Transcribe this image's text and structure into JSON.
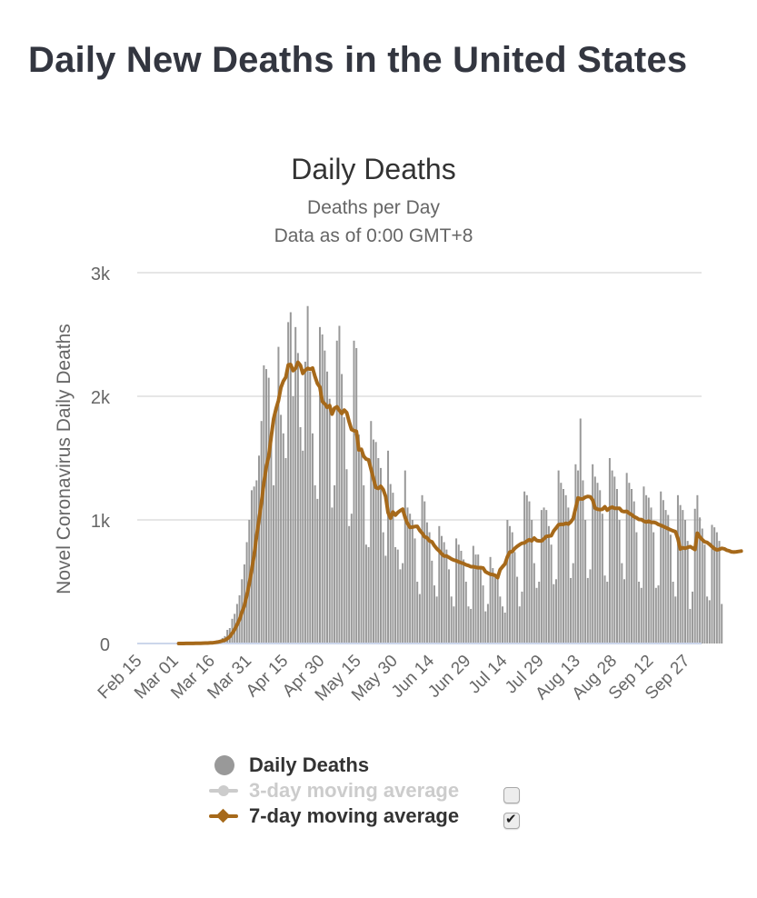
{
  "page": {
    "title": "Daily New Deaths in the United States"
  },
  "chart": {
    "title": "Daily Deaths",
    "subtitle_lines": [
      "Deaths per Day",
      "Data as of 0:00 GMT+8"
    ]
  },
  "legend": {
    "items": [
      {
        "label": "Daily Deaths",
        "color": "#999999",
        "enabled": true,
        "has_checkbox": false
      },
      {
        "label": "3-day moving average",
        "color": "#cccccc",
        "enabled": false,
        "has_checkbox": true,
        "checked": false
      },
      {
        "label": "7-day moving average",
        "color": "#a6691a",
        "enabled": true,
        "has_checkbox": true,
        "checked": true
      }
    ]
  },
  "chart_data": {
    "type": "bar",
    "title": "Daily Deaths",
    "subtitle": "Deaths per Day / Data as of 0:00 GMT+8",
    "xlabel": "",
    "ylabel": "Novel Coronavirus Daily Deaths",
    "ylim": [
      0,
      3000
    ],
    "yticks": [
      0,
      1000,
      2000,
      3000
    ],
    "ytick_labels": [
      "0",
      "1k",
      "2k",
      "3k"
    ],
    "grid": true,
    "legend_position": "bottom",
    "x_start_date": "Feb 15",
    "xtick_labels": [
      "Feb 15",
      "Mar 01",
      "Mar 16",
      "Mar 31",
      "Apr 15",
      "Apr 30",
      "May 15",
      "May 30",
      "Jun 14",
      "Jun 29",
      "Jul 14",
      "Jul 29",
      "Aug 13",
      "Aug 28",
      "Sep 12",
      "Sep 27"
    ],
    "xtick_day_offsets": [
      0,
      15,
      30,
      45,
      60,
      75,
      90,
      105,
      120,
      135,
      150,
      165,
      180,
      195,
      210,
      225
    ],
    "data_start_day_offset": 17,
    "series": [
      {
        "name": "Daily Deaths",
        "type": "bar",
        "color": "#999999",
        "values": [
          0,
          1,
          0,
          1,
          1,
          1,
          2,
          3,
          2,
          4,
          3,
          5,
          7,
          8,
          10,
          14,
          23,
          30,
          45,
          60,
          110,
          125,
          200,
          240,
          320,
          390,
          520,
          640,
          820,
          1000,
          1240,
          1270,
          1320,
          1520,
          1800,
          2250,
          2220,
          2150,
          1700,
          1280,
          1900,
          2400,
          1850,
          1700,
          1500,
          2600,
          2680,
          2000,
          2560,
          2350,
          1750,
          1560,
          2280,
          2730,
          2200,
          1700,
          1280,
          1170,
          2560,
          2500,
          2370,
          2200,
          1980,
          1100,
          1280,
          2450,
          2570,
          2180,
          1830,
          1410,
          950,
          1050,
          2450,
          2390,
          1690,
          1580,
          1280,
          800,
          780,
          1800,
          1650,
          1630,
          1500,
          1420,
          900,
          710,
          1560,
          1290,
          1220,
          780,
          760,
          600,
          650,
          1400,
          1100,
          1050,
          1000,
          850,
          500,
          400,
          1200,
          1150,
          980,
          900,
          670,
          470,
          380,
          950,
          870,
          820,
          760,
          600,
          380,
          300,
          850,
          800,
          750,
          680,
          500,
          300,
          280,
          790,
          720,
          720,
          620,
          470,
          260,
          320,
          700,
          610,
          560,
          520,
          380,
          300,
          250,
          1000,
          950,
          900,
          740,
          540,
          300,
          420,
          1230,
          1200,
          1150,
          1000,
          650,
          450,
          500,
          1080,
          1100,
          1080,
          950,
          800,
          480,
          520,
          1400,
          1300,
          1250,
          1200,
          1100,
          530,
          650,
          1450,
          1400,
          1820,
          1320,
          1000,
          530,
          600,
          1450,
          1350,
          1300,
          1240,
          1050,
          550,
          500,
          1500,
          1400,
          1350,
          1250,
          1000,
          650,
          520,
          1380,
          1300,
          1250,
          1150,
          900,
          500,
          450,
          1270,
          1200,
          1180,
          1100,
          900,
          450,
          470,
          1230,
          1160,
          1080,
          1040,
          880,
          500,
          380,
          1200,
          1120,
          1080,
          1000,
          830,
          280,
          420,
          1090,
          1200,
          1020,
          930,
          800,
          380,
          350,
          960,
          940,
          900,
          830,
          320
        ]
      },
      {
        "name": "7-day moving average",
        "type": "line",
        "color": "#a6691a",
        "values": [
          0,
          0,
          0,
          1,
          1,
          1,
          1,
          2,
          2,
          2,
          3,
          4,
          4,
          5,
          6,
          9,
          12,
          16,
          21,
          27,
          40,
          55,
          83,
          113,
          154,
          195,
          253,
          305,
          391,
          483,
          597,
          714,
          866,
          1002,
          1142,
          1301,
          1427,
          1517,
          1670,
          1818,
          1900,
          1965,
          2070,
          2123,
          2154,
          2254,
          2257,
          2207,
          2226,
          2275,
          2250,
          2185,
          2211,
          2226,
          2219,
          2228,
          2160,
          2103,
          2074,
          1957,
          1939,
          1911,
          1925,
          1856,
          1904,
          1915,
          1886,
          1861,
          1888,
          1868,
          1794,
          1731,
          1722,
          1716,
          1566,
          1571,
          1515,
          1492,
          1486,
          1410,
          1333,
          1262,
          1255,
          1272,
          1245,
          1188,
          1060,
          1014,
          1064,
          1039,
          1060,
          1075,
          1087,
          1019,
          970,
          939,
          942,
          946,
          948,
          915,
          893,
          864,
          855,
          830,
          823,
          791,
          768,
          749,
          726,
          708,
          707,
          697,
          684,
          675,
          670,
          660,
          654,
          647,
          637,
          631,
          621,
          621,
          617,
          613,
          614,
          610,
          581,
          570,
          560,
          557,
          551,
          533,
          597,
          621,
          644,
          703,
          740,
          745,
          769,
          786,
          800,
          811,
          814,
          829,
          840,
          831,
          853,
          834,
          830,
          830,
          848,
          866,
          869,
          872,
          911,
          935,
          960,
          964,
          964,
          973,
          966,
          983,
          1010,
          1094,
          1177,
          1170,
          1170,
          1184,
          1190,
          1187,
          1160,
          1095,
          1087,
          1083,
          1086,
          1106,
          1079,
          1095,
          1104,
          1094,
          1094,
          1094,
          1071,
          1067,
          1069,
          1053,
          1043,
          1026,
          1017,
          1004,
          1003,
          990,
          983,
          990,
          980,
          981,
          976,
          963,
          956,
          947,
          938,
          929,
          920,
          911,
          905,
          847,
          765,
          775,
          770,
          777,
          784,
          773,
          760,
          893,
          862,
          840,
          823,
          818,
          802,
          784,
          767,
          757,
          762,
          770,
          766,
          755,
          750,
          742,
          740,
          742,
          745,
          748
        ]
      }
    ]
  }
}
